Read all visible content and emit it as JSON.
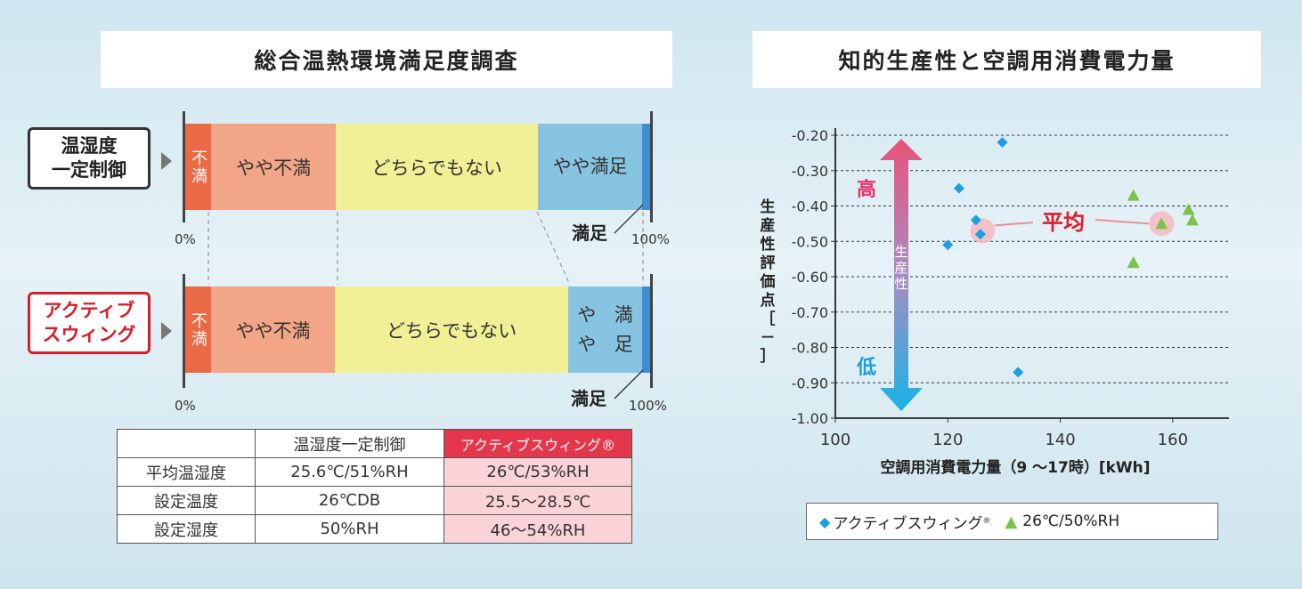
{
  "left": {
    "title": "総合温熱環境満足度調査",
    "pct_start": "0%",
    "pct_end": "100%",
    "manzoku": "満足",
    "rows": [
      {
        "label_line1": "温湿度",
        "label_line2": "一定制御",
        "segments": [
          {
            "label": "不満",
            "value": 9,
            "color": "#e96a45"
          },
          {
            "label": "やや不満",
            "value": 42,
            "color": "#f3a587"
          },
          {
            "label": "どちらでもない",
            "value": 68,
            "color": "#f1f096"
          },
          {
            "label_line1": "やや",
            "label_line2": "満足",
            "value": 35,
            "color": "#86c4e2"
          },
          {
            "label": "",
            "value": 3,
            "color": "#3f8fd0"
          }
        ]
      },
      {
        "label_line1": "アクティブ",
        "label_line2": "スウィング",
        "segments": [
          {
            "label": "不満",
            "value": 9,
            "color": "#e96a45"
          },
          {
            "label": "やや不満",
            "value": 42,
            "color": "#f3a587"
          },
          {
            "label": "どちらでもない",
            "value": 79,
            "color": "#f1f096"
          },
          {
            "label_line1": "やや",
            "label_line2": "満足",
            "value": 25,
            "color": "#86c4e2"
          },
          {
            "label": "",
            "value": 3,
            "color": "#3f8fd0"
          }
        ]
      }
    ],
    "table": {
      "header": [
        "",
        "温湿度一定制御",
        "アクティブスウィング®"
      ],
      "rows": [
        [
          "平均温湿度",
          "25.6℃/51%RH",
          "26℃/53%RH"
        ],
        [
          "設定温度",
          "26℃DB",
          "25.5～28.5℃"
        ],
        [
          "設定湿度",
          "50%RH",
          "46～54%RH"
        ]
      ]
    }
  },
  "right": {
    "title": "知的生産性と空調用消費電力量",
    "arrow_high": "高",
    "arrow_low": "低",
    "arrow_label": "生産性",
    "average_label": "平均",
    "legend": {
      "diamond": "アクティブスウィング",
      "reg": "®",
      "triangle": "26℃/50%RH"
    }
  },
  "chart_data": {
    "type": "scatter",
    "xlabel": "空調用消費電力量（9 ～17時）[kWh]",
    "ylabel": "生産性評価点［－］",
    "xlim": [
      100,
      170
    ],
    "ylim": [
      -1.0,
      -0.2
    ],
    "xticks": [
      "100",
      "120",
      "140",
      "160"
    ],
    "yticks": [
      "-0.20",
      "-0.30",
      "-0.40",
      "-0.50",
      "-0.60",
      "-0.70",
      "-0.80",
      "-0.90",
      "-1.00"
    ],
    "series": [
      {
        "name": "アクティブスウィング",
        "marker": "diamond",
        "color": "#1aa0e0",
        "points": [
          [
            129.7,
            -0.22
          ],
          [
            122.0,
            -0.35
          ],
          [
            125.0,
            -0.44
          ],
          [
            125.8,
            -0.48
          ],
          [
            120.0,
            -0.51
          ],
          [
            132.5,
            -0.87
          ]
        ],
        "mean": [
          126.2,
          -0.47
        ]
      },
      {
        "name": "26℃/50%RH",
        "marker": "triangle",
        "color": "#7dc24a",
        "points": [
          [
            153.0,
            -0.37
          ],
          [
            162.8,
            -0.41
          ],
          [
            163.5,
            -0.44
          ],
          [
            158.0,
            -0.45
          ],
          [
            153.0,
            -0.56
          ]
        ],
        "mean": [
          158.0,
          -0.45
        ]
      }
    ]
  }
}
